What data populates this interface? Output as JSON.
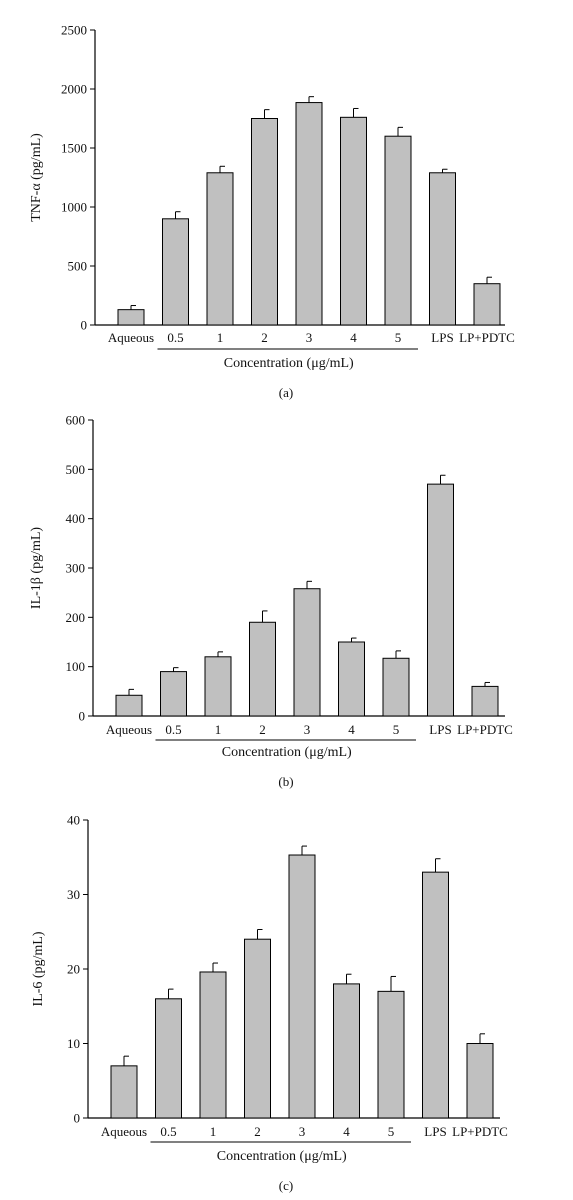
{
  "chart_data": [
    {
      "type": "bar",
      "panel_label": "(a)",
      "ylabel": "TNF-α (pg/mL)",
      "xlabel": "Concentration (μg/mL)",
      "categories": [
        "Aqueous",
        "0.5",
        "1",
        "2",
        "3",
        "4",
        "5",
        "LPS",
        "LP+PDTC"
      ],
      "values": [
        130,
        900,
        1290,
        1750,
        1885,
        1760,
        1600,
        1290,
        350
      ],
      "errors": [
        35,
        60,
        55,
        75,
        50,
        75,
        75,
        30,
        55
      ],
      "ylim": [
        0,
        2500
      ],
      "yticks": [
        0,
        500,
        1000,
        1500,
        2000,
        2500
      ],
      "bar_color": "#c0c0c0",
      "grid": false,
      "bracket_categories": [
        "0.5",
        "5"
      ]
    },
    {
      "type": "bar",
      "panel_label": "(b)",
      "ylabel": "IL-1β (pg/mL)",
      "xlabel": "Concentration (μg/mL)",
      "categories": [
        "Aqueous",
        "0.5",
        "1",
        "2",
        "3",
        "4",
        "5",
        "LPS",
        "LP+PDTC"
      ],
      "values": [
        42,
        90,
        120,
        190,
        258,
        150,
        117,
        470,
        60
      ],
      "errors": [
        12,
        8,
        10,
        23,
        15,
        8,
        15,
        18,
        8
      ],
      "ylim": [
        0,
        600
      ],
      "yticks": [
        0,
        100,
        200,
        300,
        400,
        500,
        600
      ],
      "bar_color": "#c0c0c0",
      "grid": false,
      "bracket_categories": [
        "0.5",
        "5"
      ]
    },
    {
      "type": "bar",
      "panel_label": "(c)",
      "ylabel": "IL-6 (pg/mL)",
      "xlabel": "Concentration (μg/mL)",
      "categories": [
        "Aqueous",
        "0.5",
        "1",
        "2",
        "3",
        "4",
        "5",
        "LPS",
        "LP+PDTC"
      ],
      "values": [
        7,
        16,
        19.6,
        24,
        35.3,
        18,
        17,
        33,
        10
      ],
      "errors": [
        1.3,
        1.3,
        1.2,
        1.3,
        1.2,
        1.3,
        2,
        1.8,
        1.3
      ],
      "ylim": [
        0,
        40
      ],
      "yticks": [
        0,
        10,
        20,
        30,
        40
      ],
      "bar_color": "#c0c0c0",
      "grid": false,
      "bracket_categories": [
        "0.5",
        "5"
      ]
    }
  ]
}
